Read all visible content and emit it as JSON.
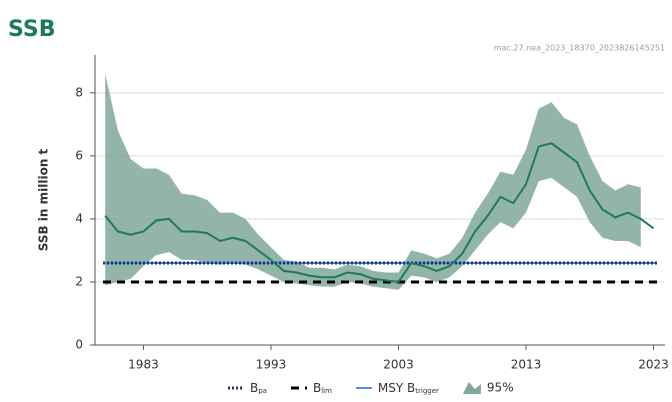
{
  "chart_data": {
    "type": "line",
    "title": "SSB",
    "note": "mac.27.nea_2023_18370_2023826145251",
    "ylabel": "SSB in million t",
    "x": [
      1980,
      1981,
      1982,
      1983,
      1984,
      1985,
      1986,
      1987,
      1988,
      1989,
      1990,
      1991,
      1992,
      1993,
      1994,
      1995,
      1996,
      1997,
      1998,
      1999,
      2000,
      2001,
      2002,
      2003,
      2004,
      2005,
      2006,
      2007,
      2008,
      2009,
      2010,
      2011,
      2012,
      2013,
      2014,
      2015,
      2016,
      2017,
      2018,
      2019,
      2020,
      2021,
      2022,
      2023
    ],
    "series": [
      {
        "color": "#1f7a5c",
        "values": [
          4.1,
          3.6,
          3.5,
          3.6,
          3.95,
          4.0,
          3.6,
          3.6,
          3.55,
          3.3,
          3.4,
          3.3,
          3.0,
          2.7,
          2.35,
          2.3,
          2.2,
          2.15,
          2.15,
          2.3,
          2.25,
          2.1,
          2.05,
          2.0,
          2.6,
          2.5,
          2.35,
          2.5,
          2.9,
          3.6,
          4.1,
          4.7,
          4.5,
          5.1,
          6.3,
          6.4,
          6.1,
          5.8,
          4.9,
          4.3,
          4.05,
          4.2,
          4.0,
          3.7
        ]
      }
    ],
    "band": {
      "name": "95%",
      "color": "#7fa898",
      "upper": [
        8.6,
        6.8,
        5.9,
        5.6,
        5.6,
        5.4,
        4.8,
        4.75,
        4.6,
        4.2,
        4.2,
        4.0,
        3.5,
        3.1,
        2.7,
        2.65,
        2.45,
        2.45,
        2.4,
        2.55,
        2.5,
        2.35,
        2.3,
        2.3,
        3.0,
        2.9,
        2.75,
        2.9,
        3.4,
        4.2,
        4.8,
        5.5,
        5.4,
        6.2,
        7.5,
        7.7,
        7.2,
        7.0,
        6.0,
        5.2,
        4.9,
        5.1,
        5.0,
        null
      ],
      "lower": [
        1.9,
        2.0,
        2.1,
        2.5,
        2.85,
        2.95,
        2.7,
        2.7,
        2.6,
        2.55,
        2.6,
        2.55,
        2.4,
        2.2,
        2.0,
        1.95,
        1.9,
        1.85,
        1.85,
        2.0,
        1.95,
        1.85,
        1.8,
        1.75,
        2.2,
        2.15,
        2.0,
        2.15,
        2.5,
        3.0,
        3.5,
        3.9,
        3.7,
        4.2,
        5.2,
        5.3,
        5.0,
        4.7,
        3.9,
        3.4,
        3.3,
        3.3,
        3.1,
        null
      ]
    },
    "reference_lines": [
      {
        "name": "MSY B",
        "name_sub": "trigger",
        "value": 2.6,
        "color": "#4a90e2",
        "style": "solid"
      },
      {
        "name": "B",
        "name_sub": "pa",
        "value": 2.6,
        "color": "#1f2f7a",
        "style": "dotted"
      },
      {
        "name": "B",
        "name_sub": "lim",
        "value": 2.0,
        "color": "#000000",
        "style": "dashed"
      }
    ],
    "legend_order": [
      1,
      2,
      0
    ],
    "xlim": [
      1979.2,
      2023.9
    ],
    "ylim": [
      0,
      9.2
    ],
    "xticks": [
      1983,
      1993,
      2003,
      2013,
      2023
    ],
    "yticks": [
      0,
      2,
      4,
      6,
      8
    ],
    "grid": true
  }
}
